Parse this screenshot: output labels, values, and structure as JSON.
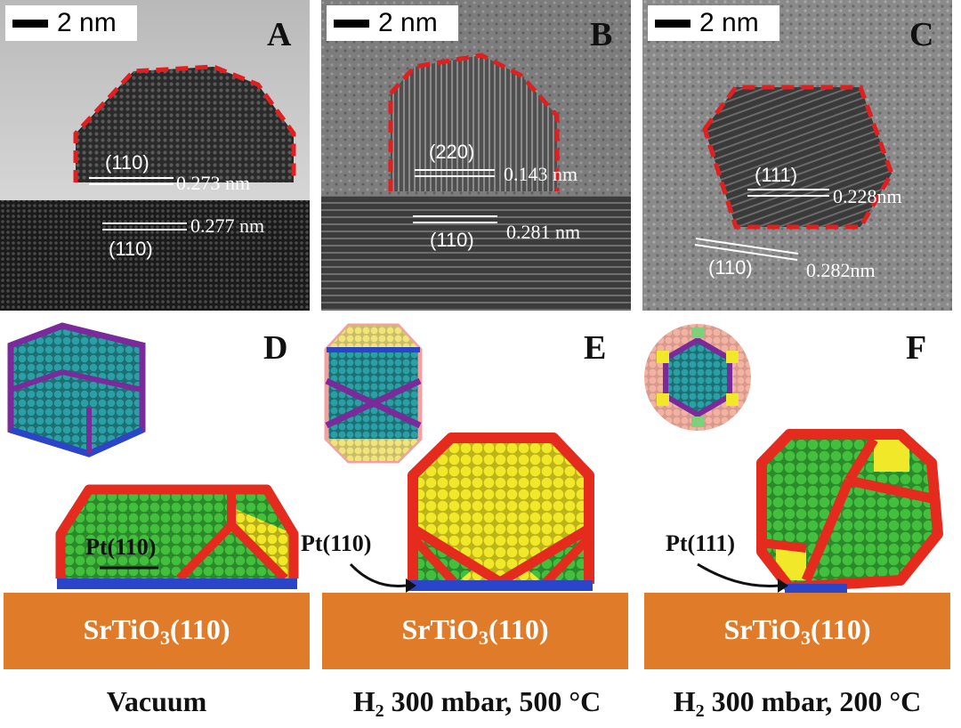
{
  "panels_top": [
    {
      "letter": "A",
      "scale": "2 nm",
      "top_label": "(110)",
      "top_spacing": "0.273 nm",
      "bottom_label": "(110)",
      "bottom_spacing": "0.277 nm"
    },
    {
      "letter": "B",
      "scale": "2 nm",
      "top_label": "(220)",
      "top_spacing": "0.143 nm",
      "bottom_label": "(110)",
      "bottom_spacing": "0.281 nm"
    },
    {
      "letter": "C",
      "scale": "2 nm",
      "top_label": "(111)",
      "top_spacing": "0.228nm",
      "bottom_label": "(110)",
      "bottom_spacing": "0.282nm"
    }
  ],
  "panels_bottom": [
    {
      "letter": "D",
      "facet": "Pt(110)",
      "substrate_main": "SrTiO",
      "substrate_sub": "3",
      "substrate_rest": "(110)",
      "cond_main": "Vacuum",
      "cond_sub": "",
      "cond_rest": ""
    },
    {
      "letter": "E",
      "facet": "Pt(110)",
      "substrate_main": "SrTiO",
      "substrate_sub": "3",
      "substrate_rest": "(110)",
      "cond_main": "H",
      "cond_sub": "2",
      "cond_rest": " 300 mbar, 500 °C"
    },
    {
      "letter": "F",
      "facet": "Pt(111)",
      "substrate_main": "SrTiO",
      "substrate_sub": "3",
      "substrate_rest": "(110)",
      "cond_main": "H",
      "cond_sub": "2",
      "cond_rest": " 300 mbar, 200 °C"
    }
  ],
  "colors": {
    "outline_dash": "#e02020",
    "substrate": "#e07b2a",
    "atom_red": "#e52a1e",
    "atom_green": "#3fb43a",
    "atom_yellow": "#f2e82a",
    "atom_blue": "#2b45c8",
    "atom_purple": "#7a2a9a",
    "atom_teal": "#2a9aa0"
  }
}
